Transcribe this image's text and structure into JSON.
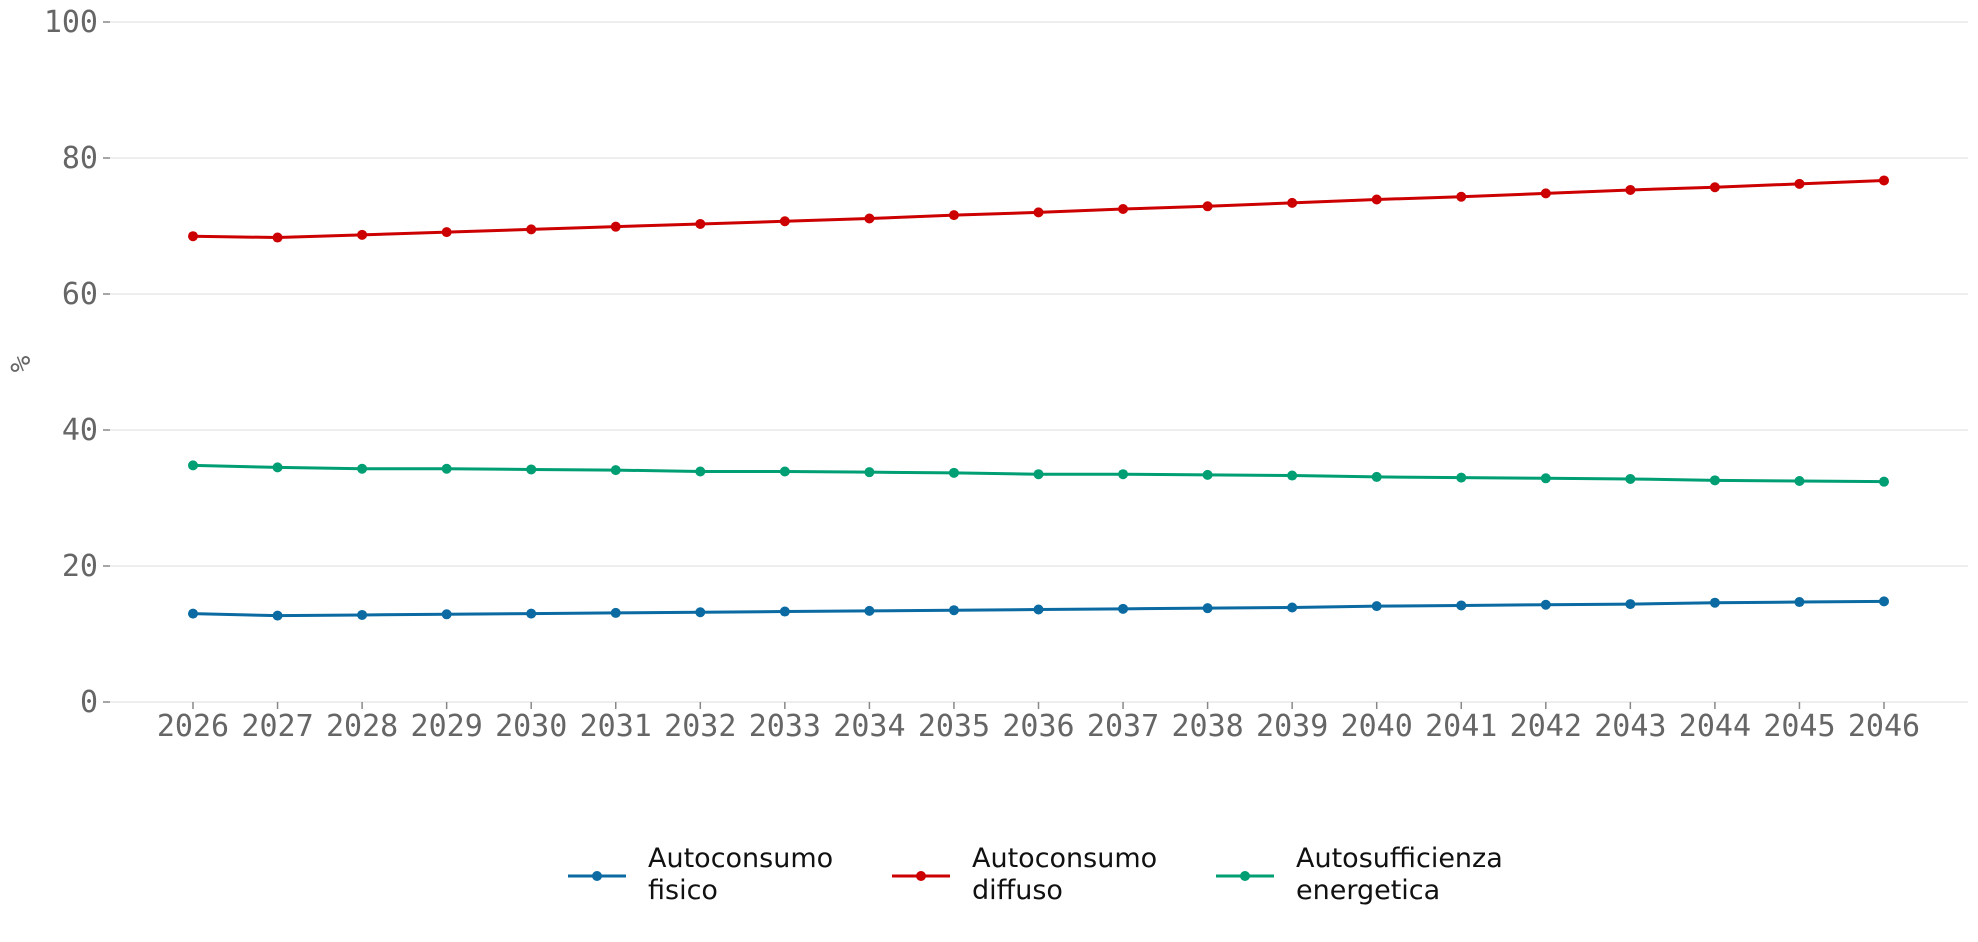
{
  "chart_data": {
    "type": "line",
    "title": "",
    "xlabel": "",
    "ylabel": "%",
    "ylim": [
      0,
      100
    ],
    "yticks": [
      0,
      20,
      40,
      60,
      80,
      100
    ],
    "grid": "horizontal",
    "legend_position": "bottom-center",
    "x": [
      "2026",
      "2027",
      "2028",
      "2029",
      "2030",
      "2031",
      "2032",
      "2033",
      "2034",
      "2035",
      "2036",
      "2037",
      "2038",
      "2039",
      "2040",
      "2041",
      "2042",
      "2043",
      "2044",
      "2045",
      "2046"
    ],
    "series": [
      {
        "name": "Autoconsumo\nfisico",
        "color": "#0a6aa1",
        "values": [
          13.0,
          12.7,
          12.8,
          12.9,
          13.0,
          13.1,
          13.2,
          13.3,
          13.4,
          13.5,
          13.6,
          13.7,
          13.8,
          13.9,
          14.1,
          14.2,
          14.3,
          14.4,
          14.6,
          14.7,
          14.8
        ]
      },
      {
        "name": "Autoconsumo\ndiffuso",
        "color": "#cc0000",
        "values": [
          68.5,
          68.3,
          68.7,
          69.1,
          69.5,
          69.9,
          70.3,
          70.7,
          71.1,
          71.6,
          72.0,
          72.5,
          72.9,
          73.4,
          73.9,
          74.3,
          74.8,
          75.3,
          75.7,
          76.2,
          76.7
        ]
      },
      {
        "name": "Autosufficienza\nenergetica",
        "color": "#009e73",
        "values": [
          34.8,
          34.5,
          34.3,
          34.3,
          34.2,
          34.1,
          33.9,
          33.9,
          33.8,
          33.7,
          33.5,
          33.5,
          33.4,
          33.3,
          33.1,
          33.0,
          32.9,
          32.8,
          32.6,
          32.5,
          32.4
        ]
      }
    ]
  }
}
